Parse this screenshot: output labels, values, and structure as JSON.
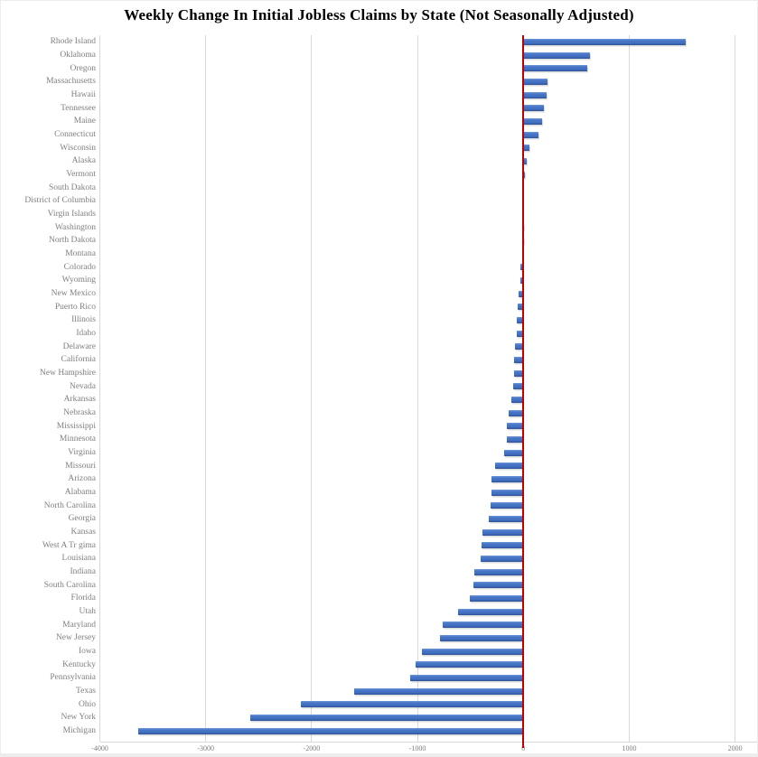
{
  "chart_data": {
    "type": "bar",
    "orientation": "horizontal",
    "title": "Weekly Change In Initial Jobless Claims by State (Not Seasonally Adjusted)",
    "categories": [
      "Rhode Island",
      "Oklahoma",
      "Oregon",
      "Massachusetts",
      "Hawaii",
      "Tennessee",
      "Maine",
      "Connecticut",
      "Wisconsin",
      "Alaska",
      "Vermont",
      "South Dakota",
      "District of Columbia",
      "Virgin Islands",
      "Washington",
      "North Dakota",
      "Montana",
      "Colorado",
      "Wyoming",
      "New Mexico",
      "Puerto Rico",
      "Illinois",
      "Idaho",
      "Delaware",
      "California",
      "New Hampshire",
      "Nevada",
      "Arkansas",
      "Nebraska",
      "Mississippi",
      "Minnesota",
      "Virginia",
      "Missouri",
      "Arizona",
      "Alabama",
      "North Carolina",
      "Georgia",
      "Kansas",
      "West A Tr gima",
      "Louisiana",
      "Indiana",
      "South Carolina",
      "Florida",
      "Utah",
      "Maryland",
      "New Jersey",
      "Iowa",
      "Kentucky",
      "Pennsylvania",
      "Texas",
      "Ohio",
      "New York",
      "Michigan"
    ],
    "values": [
      1530,
      630,
      605,
      230,
      220,
      190,
      180,
      140,
      60,
      30,
      15,
      0,
      0,
      0,
      -5,
      -5,
      -15,
      -25,
      -25,
      -45,
      -50,
      -60,
      -65,
      -75,
      -85,
      -90,
      -100,
      -110,
      -135,
      -155,
      -160,
      -180,
      -270,
      -300,
      -305,
      -310,
      -325,
      -385,
      -395,
      -400,
      -465,
      -470,
      -505,
      -620,
      -765,
      -790,
      -955,
      -1015,
      -1065,
      -1595,
      -2105,
      -2580,
      -3640
    ],
    "x_ticks": [
      -4000,
      -3000,
      -2000,
      -1000,
      0,
      1000,
      2000
    ],
    "x_tick_labels": [
      "-4000",
      "-3000",
      "-2000",
      "-1000",
      "0",
      "1000",
      "2000"
    ],
    "xlim": [
      -4000,
      2205
    ],
    "grid": true,
    "legend": "none",
    "colors": {
      "bar": "#4472c4",
      "bar_edge_dark": "#2f5496",
      "bar_edge_light": "#6b95d6",
      "zero_line": "#c00000",
      "gridline": "#d9d9d9",
      "axis_line": "#d9d9d9",
      "labels": "#7f7f7f",
      "title": "#000000",
      "background": "#ffffff"
    }
  }
}
